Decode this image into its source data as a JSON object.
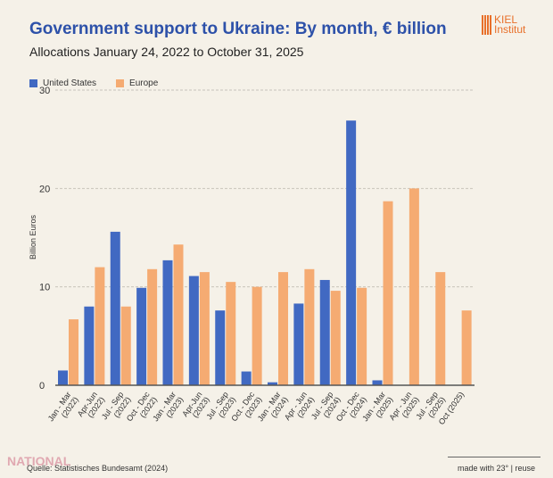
{
  "header": {
    "title": "Government support to Ukraine: By month, € billion",
    "subtitle": "Allocations January 24, 2022 to October 31, 2025",
    "logo_text": [
      "KIEL",
      "Institut"
    ]
  },
  "footer": {
    "source": "Quelle: Statistisches Bundesamt (2024)",
    "credit": "made with 23° | reuse",
    "watermark": "NATIONAL"
  },
  "colors": {
    "us": "#4169c2",
    "europe": "#f5ab72",
    "title": "#2d51a9"
  },
  "chart_data": {
    "type": "bar",
    "title": "Government support to Ukraine: By month, € billion",
    "ylabel": "Billion Euros",
    "xlabel": "",
    "ylim": [
      0,
      30
    ],
    "yticks": [
      0,
      10,
      20,
      30
    ],
    "grid": true,
    "legend": "top-left",
    "categories": [
      [
        "Jan - Mar",
        "(2022)"
      ],
      [
        "Apr-Jun",
        "(2022)"
      ],
      [
        "Jul - Sep",
        "(2022)"
      ],
      [
        "Oct - Dec",
        "(2022)"
      ],
      [
        "Jan - Mar",
        "(2023)"
      ],
      [
        "Apr-Jun",
        "(2023)"
      ],
      [
        "Jul - Sep",
        "(2023)"
      ],
      [
        "Oct - Dec",
        "(2023)"
      ],
      [
        "Jan - Mar",
        "(2024)"
      ],
      [
        "Apr - Jun",
        "(2024)"
      ],
      [
        "Jul - Sep",
        "(2024)"
      ],
      [
        "Oct - Dec",
        "(2024)"
      ],
      [
        "Jan - Mar",
        "(2025)"
      ],
      [
        "Apr - Jun",
        "(2025)"
      ],
      [
        "Jul - Sep",
        "(2025)"
      ],
      [
        "Oct (2025)",
        ""
      ]
    ],
    "series": [
      {
        "name": "United States",
        "values": [
          1.5,
          8.0,
          15.6,
          9.9,
          12.7,
          11.1,
          7.6,
          1.4,
          0.3,
          8.3,
          10.7,
          26.9,
          0.5,
          0,
          0,
          0
        ]
      },
      {
        "name": "Europe",
        "values": [
          6.7,
          12.0,
          8.0,
          11.8,
          14.3,
          11.5,
          10.5,
          10.0,
          11.5,
          11.8,
          9.6,
          9.9,
          18.7,
          20.0,
          11.5,
          7.6
        ]
      }
    ]
  }
}
